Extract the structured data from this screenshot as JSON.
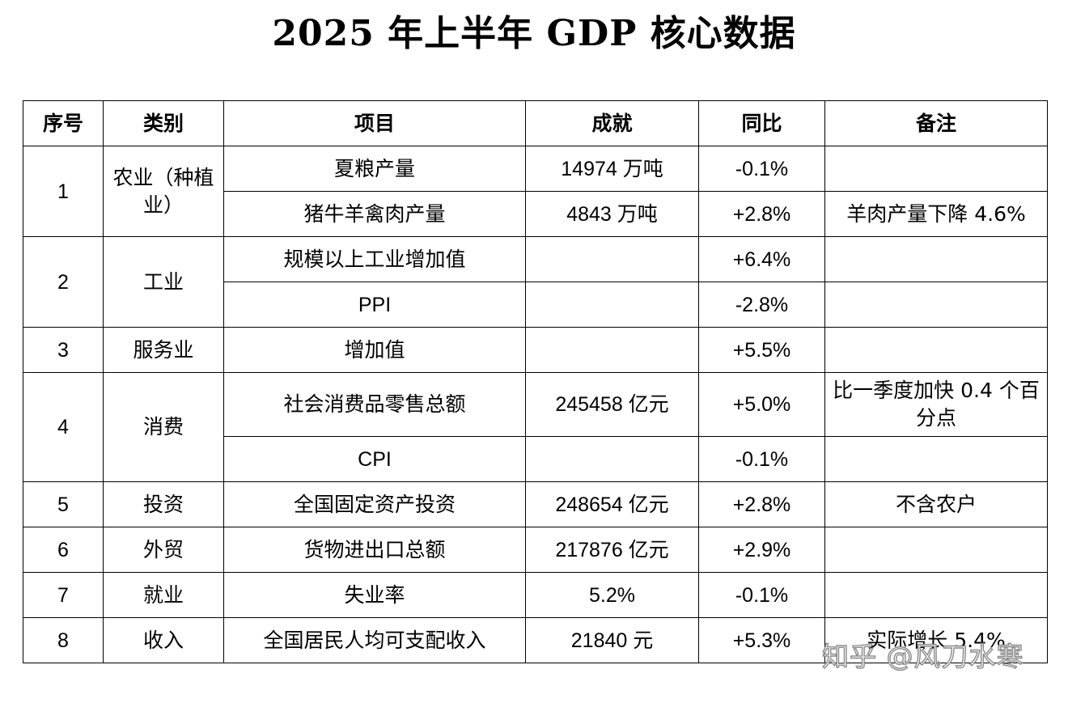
{
  "title": "2025 年上半年 GDP 核心数据",
  "headers": {
    "seq": "序号",
    "category": "类别",
    "item": "项目",
    "result": "成就",
    "yoy": "同比",
    "note": "备注"
  },
  "groups": [
    {
      "seq": "1",
      "category": "农业（种植业）",
      "rows": [
        {
          "item": "夏粮产量",
          "result": "14974 万吨",
          "yoy": "-0.1%",
          "note": ""
        },
        {
          "item": "猪牛羊禽肉产量",
          "result": "4843 万吨",
          "yoy": "+2.8%",
          "note": "羊肉产量下降 4.6%"
        }
      ]
    },
    {
      "seq": "2",
      "category": "工业",
      "rows": [
        {
          "item": "规模以上工业增加值",
          "result": "",
          "yoy": "+6.4%",
          "note": ""
        },
        {
          "item": "PPI",
          "result": "",
          "yoy": "-2.8%",
          "note": ""
        }
      ]
    },
    {
      "seq": "3",
      "category": "服务业",
      "rows": [
        {
          "item": "增加值",
          "result": "",
          "yoy": "+5.5%",
          "note": ""
        }
      ]
    },
    {
      "seq": "4",
      "category": "消费",
      "rows": [
        {
          "item": "社会消费品零售总额",
          "result": "245458 亿元",
          "yoy": "+5.0%",
          "note": "比一季度加快 0.4 个百分点"
        },
        {
          "item": "CPI",
          "result": "",
          "yoy": "-0.1%",
          "note": ""
        }
      ]
    },
    {
      "seq": "5",
      "category": "投资",
      "rows": [
        {
          "item": "全国固定资产投资",
          "result": "248654 亿元",
          "yoy": "+2.8%",
          "note": "不含农户"
        }
      ]
    },
    {
      "seq": "6",
      "category": "外贸",
      "rows": [
        {
          "item": "货物进出口总额",
          "result": "217876 亿元",
          "yoy": "+2.9%",
          "note": ""
        }
      ]
    },
    {
      "seq": "7",
      "category": "就业",
      "rows": [
        {
          "item": "失业率",
          "result": "5.2%",
          "yoy": "-0.1%",
          "note": ""
        }
      ]
    },
    {
      "seq": "8",
      "category": "收入",
      "rows": [
        {
          "item": "全国居民人均可支配收入",
          "result": "21840 元",
          "yoy": "+5.3%",
          "note": "实际增长 5.4%"
        }
      ]
    }
  ],
  "watermark": "知乎 @风刀水寒"
}
